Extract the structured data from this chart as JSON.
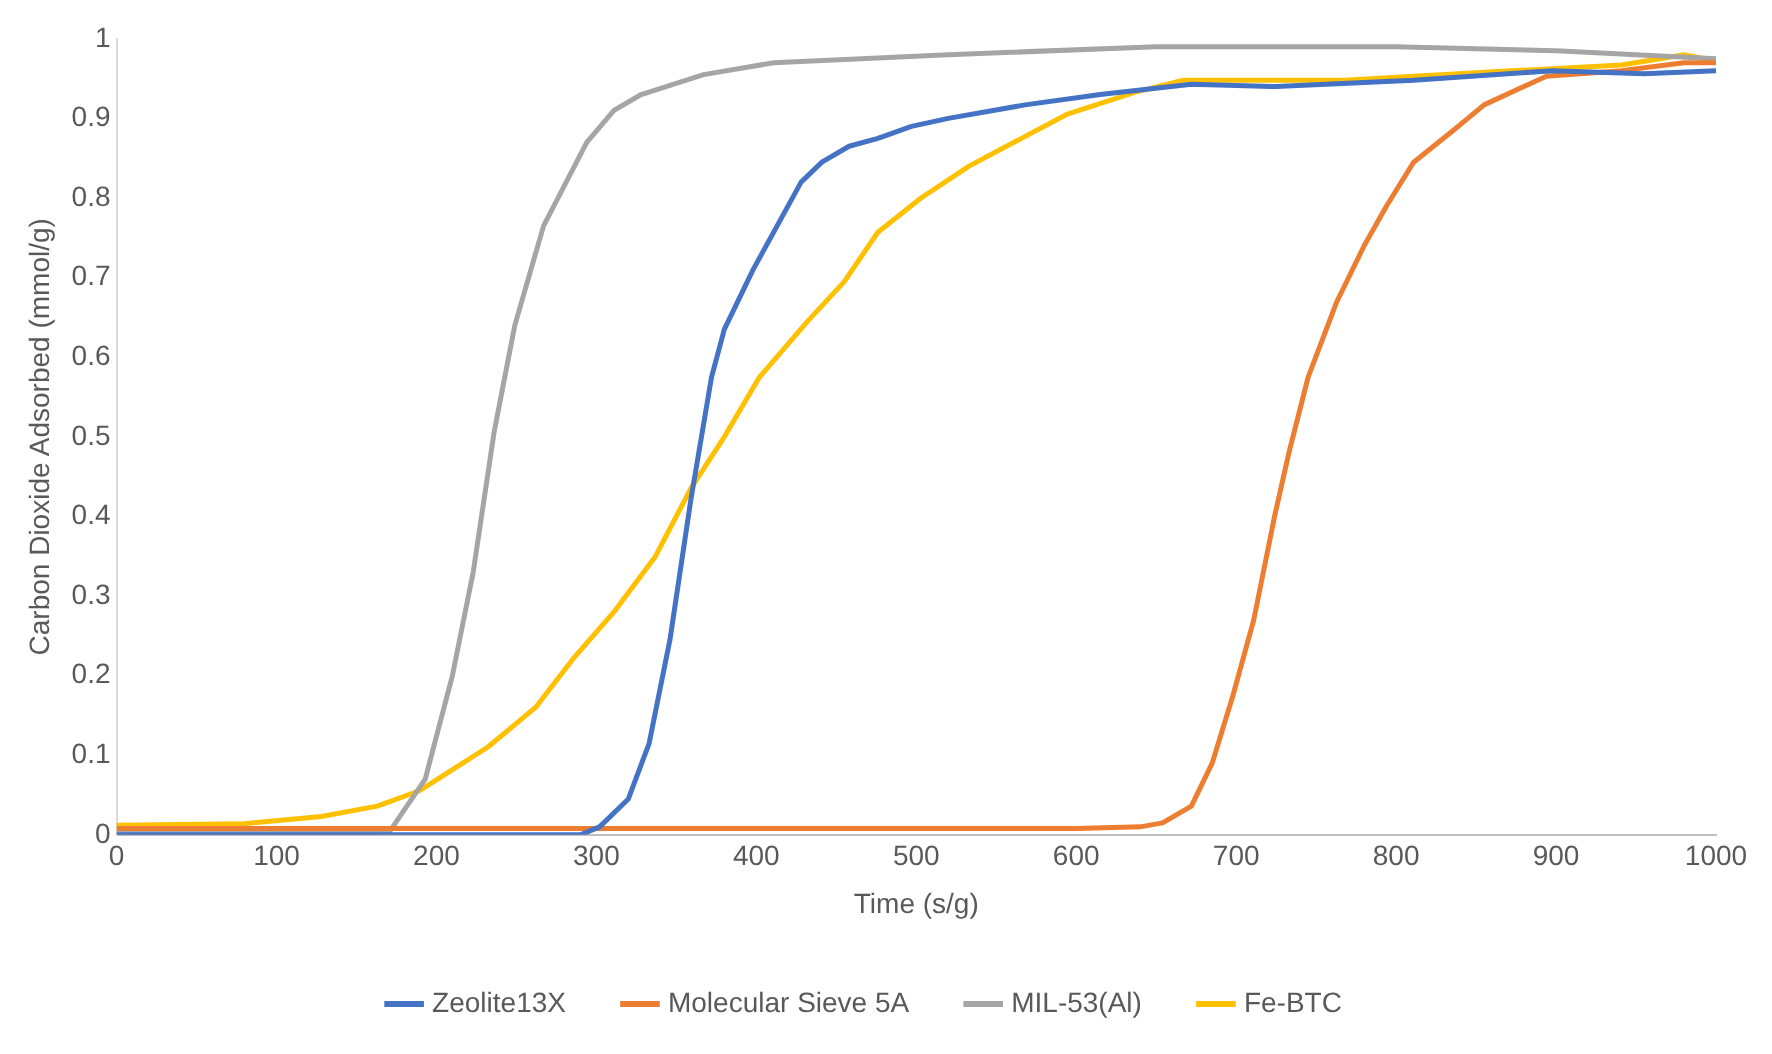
{
  "chart_data": {
    "type": "line",
    "xlabel": "Time (s/g)",
    "ylabel": "Carbon Dioxide Adsorbed (mmol/g)",
    "xlim": [
      0,
      1000
    ],
    "xticks": [
      0,
      100,
      200,
      300,
      400,
      500,
      600,
      700,
      800,
      900,
      1000
    ],
    "ylim": [
      0,
      1
    ],
    "yticks": [
      0,
      0.1,
      0.2,
      0.3,
      0.4,
      0.5,
      0.6,
      0.7,
      0.8,
      0.9,
      1
    ],
    "grid": false,
    "legend": "bottom",
    "marker": "none",
    "line_style": "solid",
    "series": [
      {
        "name": "Zeolite13X",
        "color": "#4472c4",
        "x": [
          0,
          100,
          200,
          290,
          302,
          320,
          333,
          346,
          359,
          372,
          380,
          398,
          428,
          441,
          458,
          476,
          497,
          520,
          568,
          615,
          672,
          725,
          811,
          898,
          955,
          1000
        ],
        "values": [
          0,
          0,
          0,
          0,
          0.01,
          0.045,
          0.115,
          0.245,
          0.42,
          0.575,
          0.635,
          0.71,
          0.82,
          0.845,
          0.865,
          0.875,
          0.89,
          0.9,
          0.917,
          0.93,
          0.943,
          0.94,
          0.948,
          0.96,
          0.956,
          0.96
        ]
      },
      {
        "name": "Molecular Sieve 5A",
        "color": "#ed7d31",
        "x": [
          0,
          200,
          400,
          600,
          640,
          654,
          672,
          685,
          698,
          711,
          724,
          733,
          745,
          763,
          780,
          794,
          811,
          837,
          855,
          894,
          941,
          980,
          1000
        ],
        "values": [
          0.008,
          0.008,
          0.008,
          0.008,
          0.01,
          0.015,
          0.036,
          0.09,
          0.175,
          0.27,
          0.4,
          0.48,
          0.575,
          0.67,
          0.74,
          0.79,
          0.845,
          0.887,
          0.917,
          0.953,
          0.96,
          0.97,
          0.97
        ]
      },
      {
        "name": "MIL-53(Al)",
        "color": "#a5a5a5",
        "x": [
          0,
          100,
          160,
          171,
          193,
          210,
          223,
          236,
          249,
          267,
          294,
          311,
          328,
          367,
          411,
          520,
          650,
          800,
          900,
          950,
          1000
        ],
        "values": [
          0.003,
          0.003,
          0.003,
          0.005,
          0.07,
          0.2,
          0.33,
          0.505,
          0.64,
          0.765,
          0.87,
          0.91,
          0.93,
          0.955,
          0.97,
          0.98,
          0.99,
          0.99,
          0.985,
          0.98,
          0.975
        ]
      },
      {
        "name": "Fe-BTC",
        "color": "#ffc000",
        "x": [
          0,
          80,
          128,
          163,
          189,
          232,
          262,
          285,
          311,
          337,
          359,
          380,
          402,
          432,
          455,
          476,
          503,
          533,
          594,
          637,
          667,
          768,
          855,
          941,
          980,
          1000
        ],
        "values": [
          0.012,
          0.014,
          0.023,
          0.036,
          0.055,
          0.11,
          0.16,
          0.22,
          0.28,
          0.35,
          0.435,
          0.5,
          0.575,
          0.645,
          0.695,
          0.757,
          0.8,
          0.84,
          0.905,
          0.933,
          0.948,
          0.948,
          0.958,
          0.967,
          0.98,
          0.972
        ]
      }
    ]
  }
}
